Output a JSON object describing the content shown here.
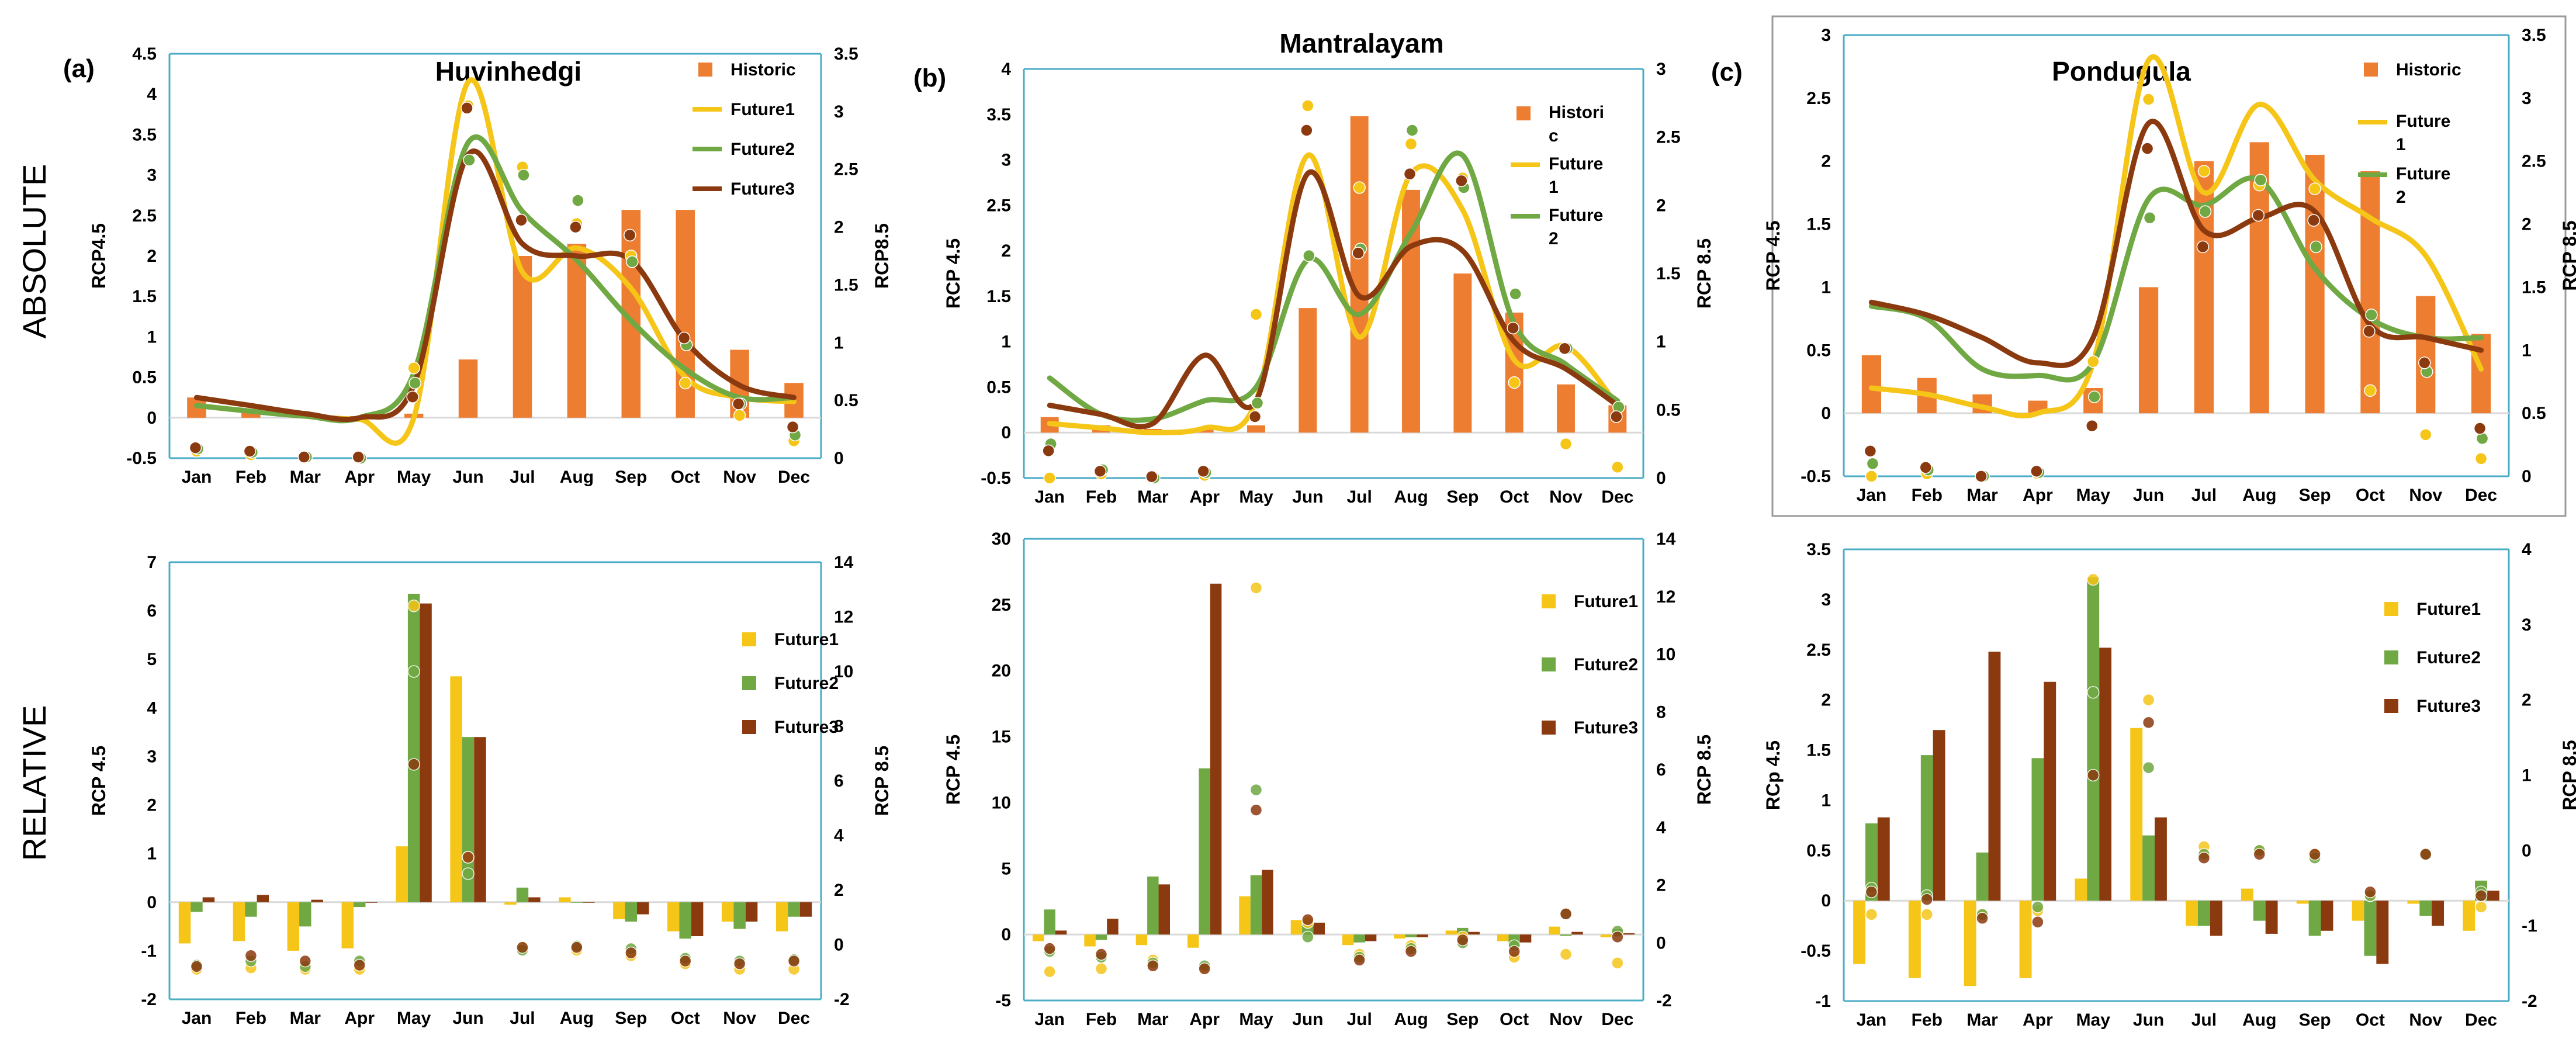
{
  "row_labels": {
    "absolute": "ABSOLUTE",
    "relative": "RELATIVE"
  },
  "months": [
    "Jan",
    "Feb",
    "Mar",
    "Apr",
    "May",
    "Jun",
    "Jul",
    "Aug",
    "Sep",
    "Oct",
    "Nov",
    "Dec"
  ],
  "colors": {
    "historic": "#ED7D31",
    "future1": "#F5C518",
    "future2": "#70A844",
    "future3": "#8B3A0F",
    "axis_line": "#4BACC6"
  },
  "chart_data": [
    {
      "id": "abs-huvinhedgi",
      "type": "bar",
      "panel_label": "(a)",
      "title": "Huvinhedgi",
      "categories": [
        "Jan",
        "Feb",
        "Mar",
        "Apr",
        "May",
        "Jun",
        "Jul",
        "Aug",
        "Sep",
        "Oct",
        "Nov",
        "Dec"
      ],
      "left_axis": {
        "label": "RCP4.5",
        "min": -0.5,
        "max": 4.5,
        "ticks": [
          "-0.5",
          "0",
          "0.5",
          "1",
          "1.5",
          "2",
          "2.5",
          "3",
          "3.5",
          "4",
          "4.5"
        ]
      },
      "right_axis": {
        "label": "RCP8.5",
        "min": 0,
        "max": 3.5,
        "ticks": [
          "0",
          "0.5",
          "1",
          "1.5",
          "2",
          "2.5",
          "3",
          "3.5"
        ]
      },
      "legend": [
        {
          "key": "historic",
          "label": "Historic",
          "kind": "bar"
        },
        {
          "key": "future1",
          "label": "Future1",
          "kind": "line"
        },
        {
          "key": "future2",
          "label": "Future2",
          "kind": "line"
        },
        {
          "key": "future3",
          "label": "Future3",
          "kind": "line"
        }
      ],
      "historic": [
        0.25,
        0.08,
        0.02,
        0.02,
        0.05,
        0.72,
        2.0,
        2.15,
        2.57,
        2.57,
        0.84,
        0.43
      ],
      "lines": {
        "future1": [
          0.15,
          0.08,
          0.02,
          -0.02,
          0.0,
          4.15,
          1.8,
          2.1,
          1.6,
          0.5,
          0.25,
          0.2
        ],
        "future2": [
          0.15,
          0.08,
          0.02,
          0.0,
          0.55,
          3.4,
          2.55,
          1.95,
          1.2,
          0.6,
          0.25,
          0.25
        ],
        "future3": [
          0.25,
          0.15,
          0.05,
          0.0,
          0.4,
          3.25,
          2.15,
          2.0,
          1.95,
          0.95,
          0.4,
          0.25
        ]
      },
      "points": {
        "future1": [
          0.06,
          0.03,
          0.0,
          0.01,
          0.78,
          3.05,
          2.52,
          2.03,
          1.75,
          0.65,
          0.37,
          0.15
        ],
        "future2": [
          0.08,
          0.05,
          0.01,
          0.0,
          0.65,
          2.58,
          2.45,
          2.23,
          1.7,
          0.98,
          0.47,
          0.2
        ],
        "future3": [
          0.09,
          0.06,
          0.01,
          0.01,
          0.53,
          3.03,
          2.06,
          2.0,
          1.93,
          1.04,
          0.47,
          0.27
        ]
      }
    },
    {
      "id": "abs-mantralayam",
      "type": "bar",
      "panel_label": "(b)",
      "title": "Mantralayam",
      "categories": [
        "Jan",
        "Feb",
        "Mar",
        "Apr",
        "May",
        "Jun",
        "Jul",
        "Aug",
        "Sep",
        "Oct",
        "Nov",
        "Dec"
      ],
      "left_axis": {
        "label": "RCP 4.5",
        "min": -0.5,
        "max": 4,
        "ticks": [
          "-0.5",
          "0",
          "0.5",
          "1",
          "1.5",
          "2",
          "2.5",
          "3",
          "3.5",
          "4"
        ]
      },
      "right_axis": {
        "label": "RCP 8.5",
        "min": 0,
        "max": 3,
        "ticks": [
          "0",
          "0.5",
          "1",
          "1.5",
          "2",
          "2.5",
          "3"
        ]
      },
      "legend": [
        {
          "key": "historic",
          "label": "Histori c",
          "kind": "bar"
        },
        {
          "key": "future1",
          "label": "Future 1",
          "kind": "line"
        },
        {
          "key": "future2",
          "label": "Future 2",
          "kind": "line"
        }
      ],
      "historic": [
        0.17,
        0.08,
        0.04,
        0.03,
        0.08,
        1.37,
        3.48,
        2.67,
        1.75,
        1.32,
        0.53,
        0.3
      ],
      "lines": {
        "future1": [
          0.1,
          0.05,
          0.0,
          0.05,
          0.35,
          3.05,
          1.05,
          2.85,
          2.45,
          0.8,
          0.95,
          0.3
        ],
        "future2": [
          0.6,
          0.2,
          0.15,
          0.35,
          0.5,
          1.9,
          1.3,
          2.2,
          3.05,
          1.2,
          0.75,
          0.35
        ],
        "future3": [
          0.3,
          0.2,
          0.1,
          0.85,
          0.35,
          2.85,
          1.5,
          2.05,
          2.0,
          1.0,
          0.7,
          0.3
        ]
      },
      "points": {
        "future1": [
          0.0,
          0.03,
          0.0,
          0.02,
          1.2,
          2.73,
          2.13,
          2.45,
          2.2,
          0.7,
          0.25,
          0.08
        ],
        "future2": [
          0.25,
          0.06,
          0.0,
          0.04,
          0.55,
          1.63,
          1.68,
          2.55,
          2.13,
          1.35,
          0.95,
          0.52
        ],
        "future3": [
          0.2,
          0.05,
          0.01,
          0.05,
          0.45,
          2.55,
          1.65,
          2.23,
          2.18,
          1.1,
          0.95,
          0.45
        ]
      }
    },
    {
      "id": "abs-pondugula",
      "type": "bar",
      "panel_label": "(c)",
      "title": "Pondugula",
      "categories": [
        "Jan",
        "Feb",
        "Mar",
        "Apr",
        "May",
        "Jun",
        "Jul",
        "Aug",
        "Sep",
        "Oct",
        "Nov",
        "Dec"
      ],
      "left_axis": {
        "label": "RCP 4.5",
        "min": -0.5,
        "max": 3,
        "ticks": [
          "-0.5",
          "0",
          "0.5",
          "1",
          "1.5",
          "2",
          "2.5",
          "3"
        ]
      },
      "right_axis": {
        "label": "RCP 8.5",
        "min": 0,
        "max": 3.5,
        "ticks": [
          "0",
          "0.5",
          "1",
          "1.5",
          "2",
          "2.5",
          "3",
          "3.5"
        ]
      },
      "legend": [
        {
          "key": "historic",
          "label": "Historic",
          "kind": "bar"
        },
        {
          "key": "future1",
          "label": "Future 1",
          "kind": "line"
        },
        {
          "key": "future2",
          "label": "Future 2",
          "kind": "line"
        }
      ],
      "historic": [
        0.46,
        0.28,
        0.15,
        0.1,
        0.2,
        1.0,
        2.0,
        2.15,
        2.05,
        1.92,
        0.93,
        0.63
      ],
      "lines": {
        "future1": [
          0.2,
          0.15,
          0.05,
          0.0,
          0.4,
          2.8,
          1.75,
          2.45,
          1.85,
          1.55,
          1.25,
          0.35
        ],
        "future2": [
          0.85,
          0.75,
          0.35,
          0.3,
          0.4,
          1.7,
          1.65,
          1.85,
          1.15,
          0.75,
          0.6,
          0.6
        ],
        "future3": [
          0.88,
          0.78,
          0.6,
          0.4,
          0.6,
          2.3,
          1.45,
          1.55,
          1.6,
          0.7,
          0.6,
          0.5
        ]
      },
      "points": {
        "future1": [
          0.0,
          0.02,
          0.0,
          0.02,
          0.91,
          2.99,
          2.42,
          2.31,
          2.28,
          0.68,
          0.33,
          0.14
        ],
        "future2": [
          0.1,
          0.05,
          0.0,
          0.03,
          0.63,
          2.05,
          2.1,
          2.35,
          1.82,
          1.28,
          0.83,
          0.3
        ],
        "future3": [
          0.2,
          0.07,
          0.0,
          0.04,
          0.4,
          2.6,
          1.82,
          2.07,
          2.03,
          1.15,
          0.9,
          0.38
        ]
      }
    },
    {
      "id": "rel-huvinhedgi",
      "type": "bar",
      "categories": [
        "Jan",
        "Feb",
        "Mar",
        "Apr",
        "May",
        "Jun",
        "Jul",
        "Aug",
        "Sep",
        "Oct",
        "Nov",
        "Dec"
      ],
      "left_axis": {
        "label": "RCP 4.5",
        "min": -2,
        "max": 7,
        "ticks": [
          "-2",
          "-1",
          "0",
          "1",
          "2",
          "3",
          "4",
          "5",
          "6",
          "7"
        ]
      },
      "right_axis": {
        "label": "RCP 8.5",
        "min": -2,
        "max": 14,
        "ticks": [
          "-2",
          "0",
          "2",
          "4",
          "6",
          "8",
          "10",
          "12",
          "14"
        ]
      },
      "legend": [
        {
          "key": "future1",
          "label": "Future1",
          "kind": "bar"
        },
        {
          "key": "future2",
          "label": "Future2",
          "kind": "bar"
        },
        {
          "key": "future3",
          "label": "Future3",
          "kind": "bar"
        }
      ],
      "series": {
        "future1": [
          -0.85,
          -0.8,
          -1.0,
          -0.95,
          1.15,
          4.65,
          -0.05,
          0.1,
          -0.35,
          -0.6,
          -0.4,
          -0.6
        ],
        "future2": [
          -0.2,
          -0.3,
          -0.5,
          -0.1,
          6.35,
          3.4,
          0.3,
          0.0,
          -0.4,
          -0.75,
          -0.55,
          -0.3
        ],
        "future3": [
          0.1,
          0.15,
          0.05,
          0.0,
          6.15,
          3.4,
          0.1,
          0.0,
          -0.25,
          -0.7,
          -0.4,
          -0.3
        ]
      },
      "points": {
        "future1": [
          -0.9,
          -0.85,
          -0.9,
          -0.9,
          12.4,
          3.2,
          -0.1,
          -0.2,
          -0.4,
          -0.7,
          -0.9,
          -0.9
        ],
        "future2": [
          -0.75,
          -0.6,
          -0.8,
          -0.6,
          10.0,
          2.6,
          -0.2,
          -0.05,
          -0.15,
          -0.5,
          -0.6,
          -0.55
        ],
        "future3": [
          -0.8,
          -0.4,
          -0.6,
          -0.75,
          6.6,
          3.2,
          -0.1,
          -0.1,
          -0.3,
          -0.6,
          -0.7,
          -0.6
        ]
      }
    },
    {
      "id": "rel-mantralayam",
      "type": "bar",
      "categories": [
        "Jan",
        "Feb",
        "Mar",
        "Apr",
        "May",
        "Jun",
        "Jul",
        "Aug",
        "Sep",
        "Oct",
        "Nov",
        "Dec"
      ],
      "left_axis": {
        "label": "RCP 4.5",
        "min": -5,
        "max": 30,
        "ticks": [
          "-5",
          "0",
          "5",
          "10",
          "15",
          "20",
          "25",
          "30"
        ]
      },
      "right_axis": {
        "label": "RCP 8.5",
        "min": -2,
        "max": 14,
        "ticks": [
          "-2",
          "0",
          "2",
          "4",
          "6",
          "8",
          "10",
          "12",
          "14"
        ]
      },
      "legend": [
        {
          "key": "future1",
          "label": "Future1",
          "kind": "bar"
        },
        {
          "key": "future2",
          "label": "Future2",
          "kind": "bar"
        },
        {
          "key": "future3",
          "label": "Future3",
          "kind": "bar"
        }
      ],
      "series": {
        "future1": [
          -0.5,
          -0.9,
          -0.8,
          -1.0,
          2.9,
          1.1,
          -0.8,
          -0.3,
          0.3,
          -0.5,
          0.6,
          -0.2
        ],
        "future2": [
          1.9,
          -0.4,
          4.4,
          12.6,
          4.5,
          1.0,
          -0.6,
          -0.2,
          0.5,
          -0.9,
          -0.1,
          0.4
        ],
        "future3": [
          0.3,
          1.2,
          3.8,
          26.6,
          4.9,
          0.9,
          -0.5,
          -0.2,
          0.2,
          -0.6,
          0.2,
          0.1
        ]
      },
      "points": {
        "future1": [
          -1.0,
          -0.9,
          -0.6,
          -0.9,
          12.3,
          0.7,
          -0.4,
          -0.1,
          0.2,
          -0.5,
          -0.4,
          -0.7
        ],
        "future2": [
          -0.3,
          -0.5,
          -0.7,
          -0.8,
          5.3,
          0.2,
          -0.5,
          -0.2,
          0.0,
          -0.1,
          1.0,
          0.4
        ],
        "future3": [
          -0.2,
          -0.4,
          -0.8,
          -0.9,
          4.6,
          0.8,
          -0.6,
          -0.3,
          0.1,
          -0.3,
          1.0,
          0.2
        ]
      }
    },
    {
      "id": "rel-pondugula",
      "type": "bar",
      "categories": [
        "Jan",
        "Feb",
        "Mar",
        "Apr",
        "May",
        "Jun",
        "Jul",
        "Aug",
        "Sep",
        "Oct",
        "Nov",
        "Dec"
      ],
      "left_axis": {
        "label": "RCp 4.5",
        "min": -1,
        "max": 3.5,
        "ticks": [
          "-1",
          "-0.5",
          "0",
          "0.5",
          "1",
          "1.5",
          "2",
          "2.5",
          "3",
          "3.5"
        ]
      },
      "right_axis": {
        "label": "RCP 8.5",
        "min": -2,
        "max": 4,
        "ticks": [
          "-2",
          "-1",
          "0",
          "1",
          "2",
          "3",
          "4"
        ]
      },
      "legend": [
        {
          "key": "future1",
          "label": "Future1",
          "kind": "bar"
        },
        {
          "key": "future2",
          "label": "Future2",
          "kind": "bar"
        },
        {
          "key": "future3",
          "label": "Future3",
          "kind": "bar"
        }
      ],
      "series": {
        "future1": [
          -0.63,
          -0.77,
          -0.85,
          -0.77,
          0.22,
          1.72,
          -0.25,
          0.12,
          -0.03,
          -0.2,
          -0.03,
          -0.3
        ],
        "future2": [
          0.77,
          1.45,
          0.48,
          1.42,
          3.22,
          0.65,
          -0.25,
          -0.2,
          -0.35,
          -0.55,
          -0.15,
          0.2
        ],
        "future3": [
          0.83,
          1.7,
          2.48,
          2.18,
          2.52,
          0.83,
          -0.35,
          -0.33,
          -0.3,
          -0.63,
          -0.25,
          0.1
        ]
      },
      "points": {
        "future1": [
          -0.85,
          -0.85,
          -0.85,
          -0.8,
          3.6,
          2.0,
          0.05,
          0.0,
          -0.05,
          -0.6,
          -0.05,
          -0.75
        ],
        "future2": [
          -0.5,
          -0.6,
          -0.85,
          -0.75,
          2.1,
          1.1,
          -0.05,
          0.0,
          -0.1,
          -0.6,
          -0.05,
          -0.55
        ],
        "future3": [
          -0.55,
          -0.65,
          -0.9,
          -0.95,
          1.0,
          1.7,
          -0.1,
          -0.05,
          -0.05,
          -0.55,
          -0.05,
          -0.6
        ]
      }
    }
  ]
}
